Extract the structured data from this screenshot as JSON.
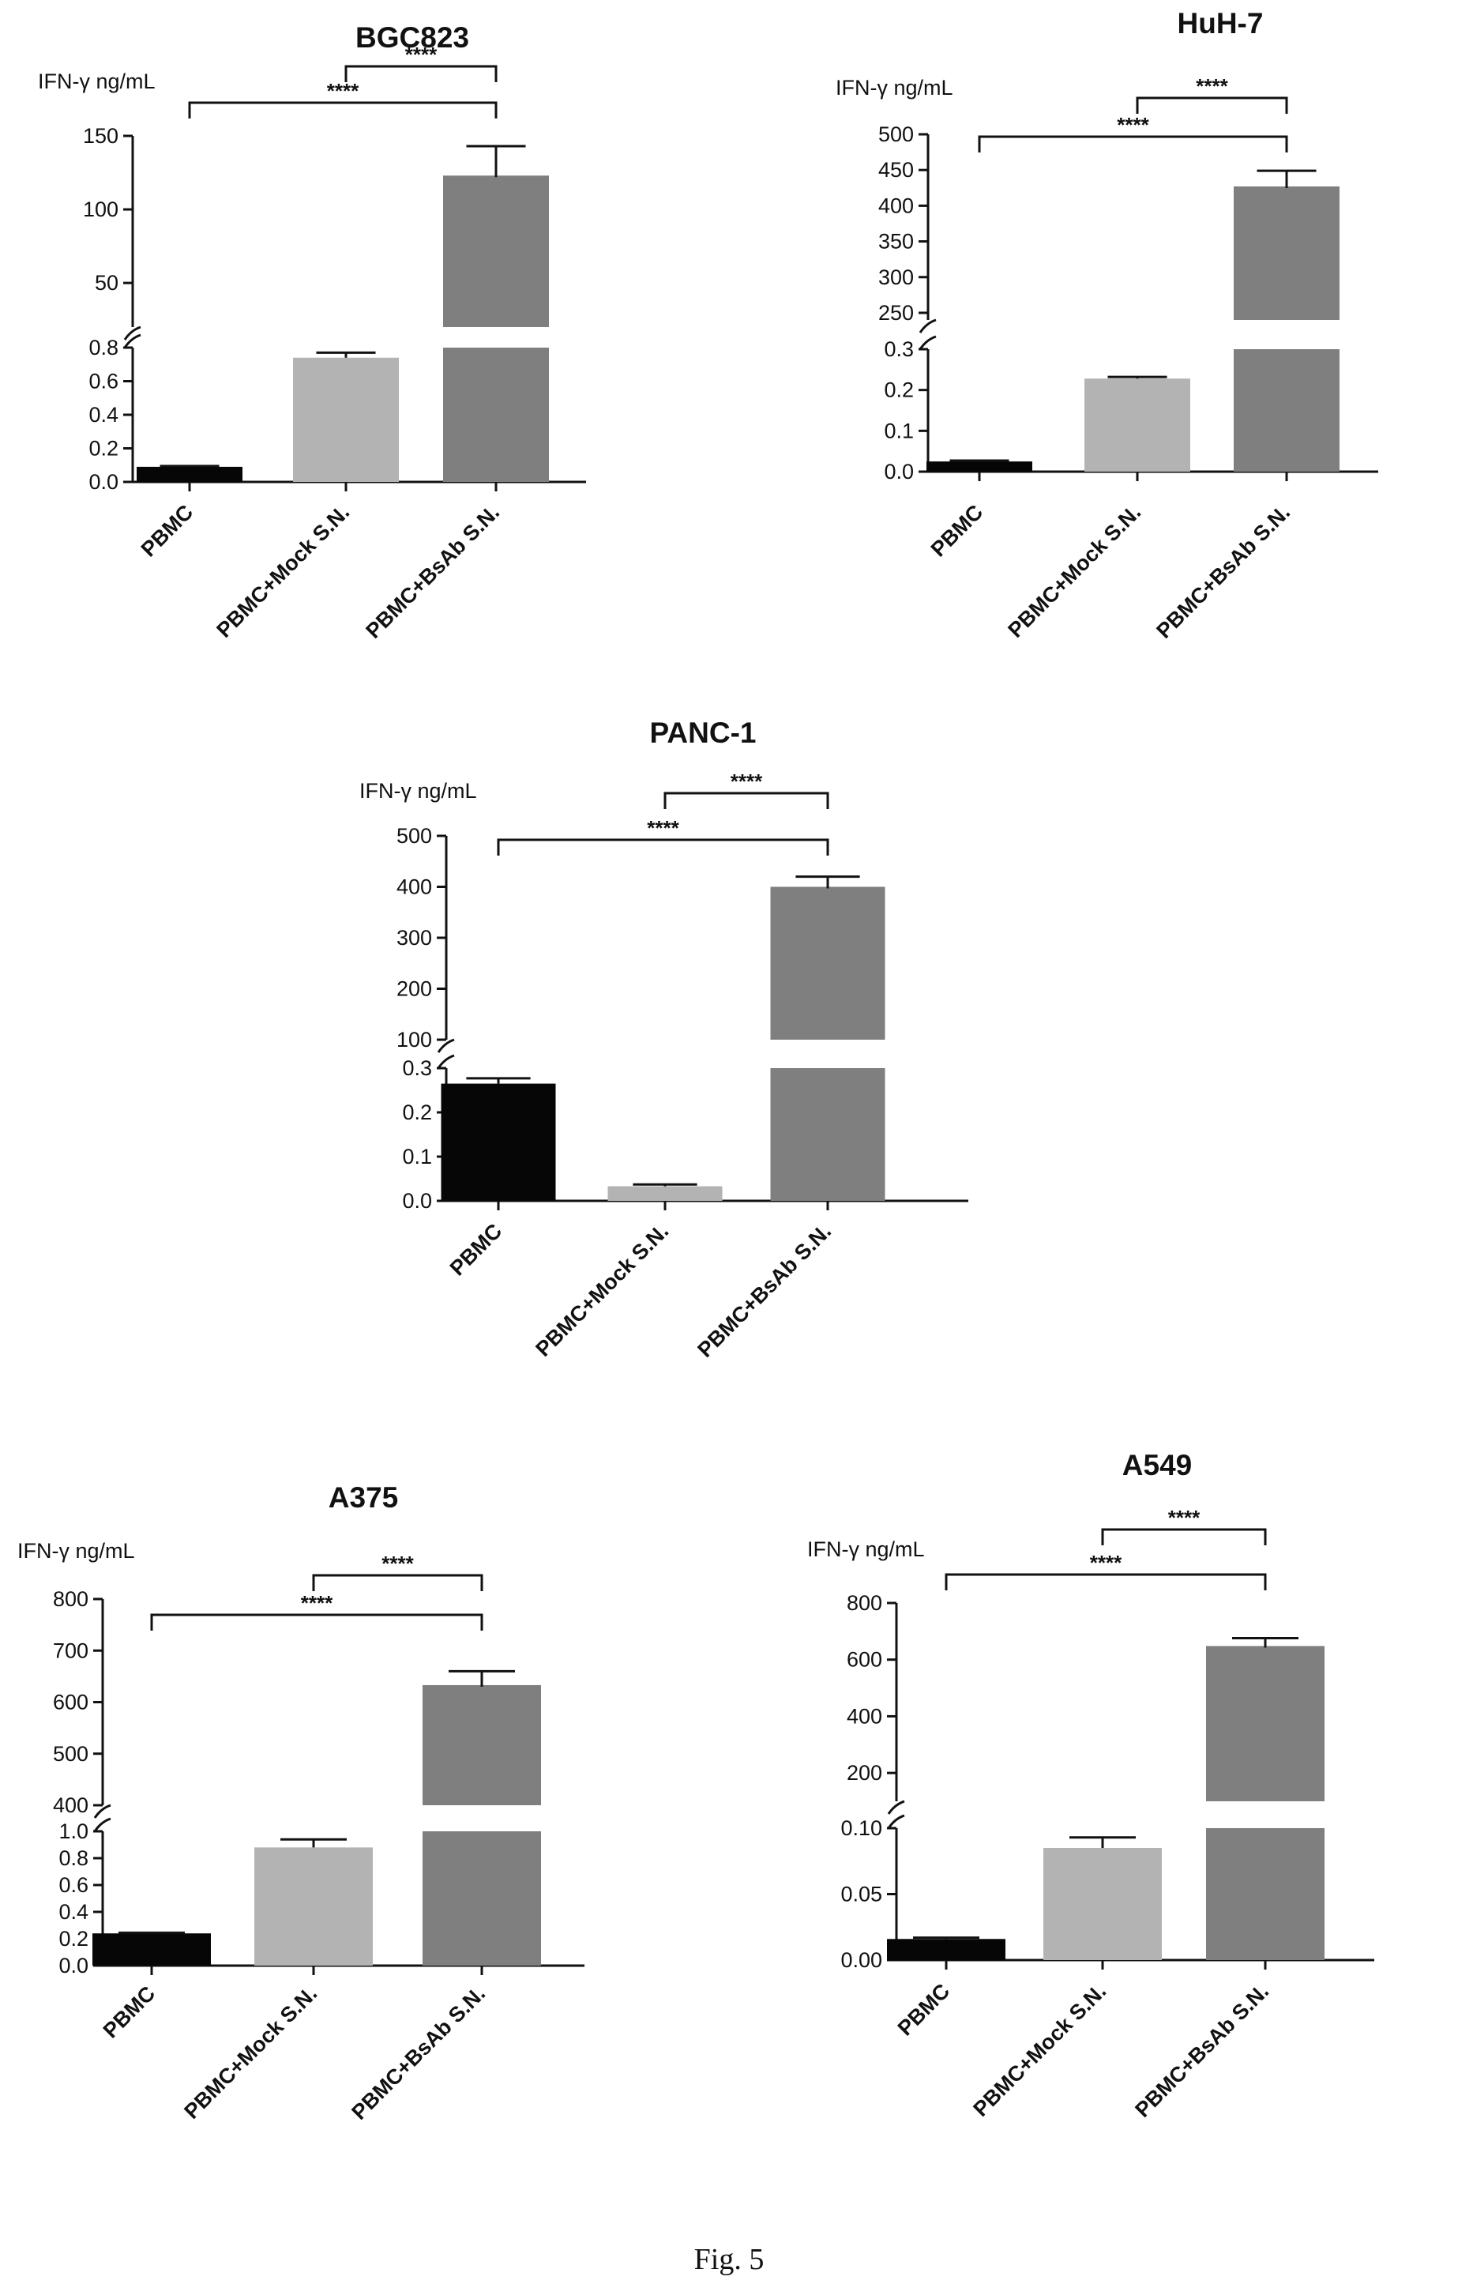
{
  "caption": "Fig. 5",
  "colors": {
    "PBMC": "#060606",
    "PBMC+Mock S.N.": "#b3b3b3",
    "PBMC+BsAb S.N.": "#7f7f7f",
    "axis": "#111111"
  },
  "chart_data": [
    {
      "type": "bar",
      "title": "BGC823",
      "ylabel": "IFN-γ ng/mL",
      "categories": [
        "PBMC",
        "PBMC+Mock S.N.",
        "PBMC+BsAb S.N."
      ],
      "values": [
        0.09,
        0.74,
        123
      ],
      "errors": [
        0.005,
        0.03,
        20
      ],
      "broken_axis": true,
      "lower_range": [
        0,
        0.8
      ],
      "lower_ticks": [
        0.0,
        0.2,
        0.4,
        0.6,
        0.8
      ],
      "lower_tick_labels": [
        "0.0",
        "0.2",
        "0.4",
        "0.6",
        "0.8"
      ],
      "upper_range": [
        20,
        150
      ],
      "upper_ticks": [
        50,
        100,
        150
      ],
      "upper_tick_labels": [
        "50",
        "100",
        "150"
      ],
      "significance": [
        {
          "from": 1,
          "to": 2,
          "label": "****"
        },
        {
          "from": 0,
          "to": 2,
          "label": "****"
        }
      ]
    },
    {
      "type": "bar",
      "title": "HuH-7",
      "ylabel": "IFN-γ ng/mL",
      "categories": [
        "PBMC",
        "PBMC+Mock S.N.",
        "PBMC+BsAb S.N."
      ],
      "values": [
        0.025,
        0.228,
        427
      ],
      "errors": [
        0.002,
        0.004,
        22
      ],
      "broken_axis": true,
      "lower_range": [
        0,
        0.3
      ],
      "lower_ticks": [
        0.0,
        0.1,
        0.2,
        0.3
      ],
      "lower_tick_labels": [
        "0.0",
        "0.1",
        "0.2",
        "0.3"
      ],
      "upper_range": [
        240,
        500
      ],
      "upper_ticks": [
        250,
        300,
        350,
        400,
        450,
        500
      ],
      "upper_tick_labels": [
        "250",
        "300",
        "350",
        "400",
        "450",
        "500"
      ],
      "significance": [
        {
          "from": 1,
          "to": 2,
          "label": "****"
        },
        {
          "from": 0,
          "to": 2,
          "label": "****"
        }
      ]
    },
    {
      "type": "bar",
      "title": "PANC-1",
      "ylabel": "IFN-γ ng/mL",
      "categories": [
        "PBMC",
        "PBMC+Mock S.N.",
        "PBMC+BsAb S.N."
      ],
      "values": [
        0.265,
        0.033,
        400
      ],
      "errors": [
        0.012,
        0.004,
        20
      ],
      "broken_axis": true,
      "lower_range": [
        0,
        0.3
      ],
      "lower_ticks": [
        0.0,
        0.1,
        0.2,
        0.3
      ],
      "lower_tick_labels": [
        "0.0",
        "0.1",
        "0.2",
        "0.3"
      ],
      "upper_range": [
        100,
        500
      ],
      "upper_ticks": [
        100,
        200,
        300,
        400,
        500
      ],
      "upper_tick_labels": [
        "100",
        "200",
        "300",
        "400",
        "500"
      ],
      "significance": [
        {
          "from": 1,
          "to": 2,
          "label": "****"
        },
        {
          "from": 0,
          "to": 2,
          "label": "****"
        }
      ]
    },
    {
      "type": "bar",
      "title": "A375",
      "ylabel": "IFN-γ ng/mL",
      "categories": [
        "PBMC",
        "PBMC+Mock S.N.",
        "PBMC+BsAb S.N."
      ],
      "values": [
        0.24,
        0.88,
        633
      ],
      "errors": [
        0.005,
        0.06,
        27
      ],
      "broken_axis": true,
      "lower_range": [
        0,
        1.0
      ],
      "lower_ticks": [
        0.0,
        0.2,
        0.4,
        0.6,
        0.8,
        1.0
      ],
      "lower_tick_labels": [
        "0.0",
        "0.2",
        "0.4",
        "0.6",
        "0.8",
        "1.0"
      ],
      "upper_range": [
        400,
        800
      ],
      "upper_ticks": [
        400,
        500,
        600,
        700,
        800
      ],
      "upper_tick_labels": [
        "400",
        "500",
        "600",
        "700",
        "800"
      ],
      "significance": [
        {
          "from": 1,
          "to": 2,
          "label": "****"
        },
        {
          "from": 0,
          "to": 2,
          "label": "****"
        }
      ]
    },
    {
      "type": "bar",
      "title": "A549",
      "ylabel": "IFN-γ ng/mL",
      "categories": [
        "PBMC",
        "PBMC+Mock S.N.",
        "PBMC+BsAb S.N."
      ],
      "values": [
        0.016,
        0.085,
        648
      ],
      "errors": [
        0.001,
        0.008,
        28
      ],
      "broken_axis": true,
      "lower_range": [
        0,
        0.1
      ],
      "lower_ticks": [
        0.0,
        0.05,
        0.1
      ],
      "lower_tick_labels": [
        "0.00",
        "0.05",
        "0.10"
      ],
      "upper_range": [
        100,
        800
      ],
      "upper_ticks": [
        200,
        400,
        600,
        800
      ],
      "upper_tick_labels": [
        "200",
        "400",
        "600",
        "800"
      ],
      "significance": [
        {
          "from": 1,
          "to": 2,
          "label": "****"
        },
        {
          "from": 0,
          "to": 2,
          "label": "****"
        }
      ]
    }
  ]
}
